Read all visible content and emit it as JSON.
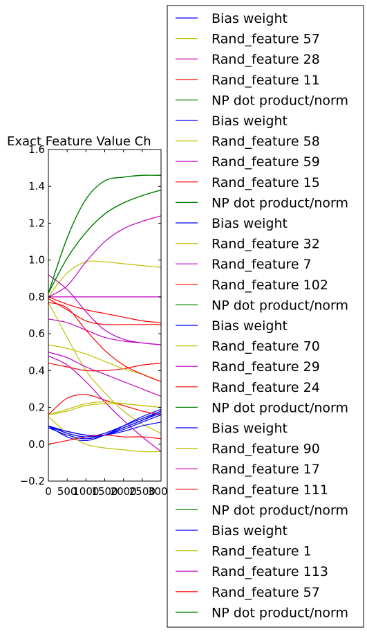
{
  "chart_data": {
    "type": "line",
    "title": "Exact Feature Value Ch",
    "xlabel": "",
    "ylabel": "",
    "xlim": [
      0,
      3000
    ],
    "ylim": [
      -0.2,
      1.6
    ],
    "x_ticks": [
      "0",
      "500",
      "1000",
      "1500",
      "2000",
      "2500",
      "3000"
    ],
    "y_ticks": [
      "−0.2",
      "0.0",
      "0.2",
      "0.4",
      "0.6",
      "0.8",
      "1.0",
      "1.2",
      "1.4",
      "1.6"
    ],
    "grid": false,
    "legend_position": "right, outside plot",
    "x": [
      0,
      500,
      1000,
      1500,
      2000,
      2500,
      3000
    ],
    "series": [
      {
        "name": "Bias weight",
        "color": "#0000ff",
        "values": [
          0.1,
          0.07,
          0.05,
          0.05,
          0.09,
          0.13,
          0.18
        ]
      },
      {
        "name": "Rand_feature 57",
        "color": "#bfbf00",
        "values": [
          0.77,
          0.58,
          0.4,
          0.28,
          0.18,
          0.11,
          0.06
        ]
      },
      {
        "name": "Rand_feature 28",
        "color": "#bf00bf",
        "values": [
          0.5,
          0.47,
          0.42,
          0.38,
          0.34,
          0.3,
          0.26
        ]
      },
      {
        "name": "Rand_feature 11",
        "color": "#ff0000",
        "values": [
          0.8,
          0.76,
          0.73,
          0.71,
          0.69,
          0.67,
          0.66
        ]
      },
      {
        "name": "NP dot product/norm",
        "color": "#008000",
        "values": [
          0.82,
          1.12,
          1.33,
          1.43,
          1.45,
          1.46,
          1.46
        ]
      },
      {
        "name": "Bias weight",
        "color": "#0000ff",
        "values": [
          0.1,
          0.04,
          0.02,
          0.05,
          0.1,
          0.15,
          0.19
        ]
      },
      {
        "name": "Rand_feature 58",
        "color": "#bfbf00",
        "values": [
          0.15,
          0.06,
          0.0,
          -0.02,
          -0.03,
          -0.04,
          -0.04
        ]
      },
      {
        "name": "Rand_feature 59",
        "color": "#bf00bf",
        "values": [
          0.8,
          0.8,
          0.8,
          0.8,
          0.8,
          0.8,
          0.8
        ]
      },
      {
        "name": "Rand_feature 15",
        "color": "#ff0000",
        "values": [
          0.16,
          0.25,
          0.27,
          0.24,
          0.21,
          0.18,
          0.16
        ]
      },
      {
        "name": "NP dot product/norm",
        "color": "#008000",
        "values": [
          0.82,
          1.01,
          1.15,
          1.25,
          1.31,
          1.35,
          1.38
        ]
      },
      {
        "name": "Bias weight",
        "color": "#0000ff",
        "values": [
          0.09,
          0.07,
          0.05,
          0.05,
          0.07,
          0.1,
          0.12
        ]
      },
      {
        "name": "Rand_feature 32",
        "color": "#bfbf00",
        "values": [
          0.8,
          0.93,
          0.99,
          0.99,
          0.98,
          0.97,
          0.96
        ]
      },
      {
        "name": "Rand_feature 7",
        "color": "#bf00bf",
        "values": [
          0.48,
          0.43,
          0.34,
          0.23,
          0.13,
          0.04,
          -0.04
        ]
      },
      {
        "name": "Rand_feature 102",
        "color": "#ff0000",
        "values": [
          0.44,
          0.42,
          0.4,
          0.4,
          0.41,
          0.43,
          0.44
        ]
      },
      {
        "name": "NP dot product/norm",
        "color": "#008000",
        "values": [
          0.82,
          1.12,
          1.33,
          1.43,
          1.45,
          1.46,
          1.46
        ]
      },
      {
        "name": "Bias weight",
        "color": "#0000ff",
        "values": [
          0.1,
          0.06,
          0.04,
          0.06,
          0.1,
          0.14,
          0.18
        ]
      },
      {
        "name": "Rand_feature 70",
        "color": "#bfbf00",
        "values": [
          0.54,
          0.52,
          0.49,
          0.45,
          0.41,
          0.38,
          0.34
        ]
      },
      {
        "name": "Rand_feature 29",
        "color": "#bf00bf",
        "values": [
          0.68,
          0.66,
          0.62,
          0.58,
          0.56,
          0.55,
          0.54
        ]
      },
      {
        "name": "Rand_feature 24",
        "color": "#ff0000",
        "values": [
          0.0,
          0.02,
          0.04,
          0.05,
          0.04,
          0.04,
          0.03
        ]
      },
      {
        "name": "NP dot product/norm",
        "color": "#008000",
        "values": [
          0.82,
          1.01,
          1.15,
          1.25,
          1.31,
          1.35,
          1.38
        ]
      },
      {
        "name": "Bias weight",
        "color": "#0000ff",
        "values": [
          0.09,
          0.05,
          0.03,
          0.05,
          0.09,
          0.13,
          0.17
        ]
      },
      {
        "name": "Rand_feature 90",
        "color": "#bfbf00",
        "values": [
          0.16,
          0.19,
          0.22,
          0.23,
          0.22,
          0.21,
          0.2
        ]
      },
      {
        "name": "Rand_feature 17",
        "color": "#bf00bf",
        "values": [
          0.92,
          0.84,
          0.72,
          0.62,
          0.57,
          0.55,
          0.54
        ]
      },
      {
        "name": "Rand_feature 111",
        "color": "#ff0000",
        "values": [
          0.79,
          0.73,
          0.67,
          0.65,
          0.65,
          0.65,
          0.65
        ]
      },
      {
        "name": "NP dot product/norm",
        "color": "#008000",
        "values": [
          0.82,
          1.12,
          1.33,
          1.43,
          1.45,
          1.46,
          1.46
        ]
      },
      {
        "name": "Bias weight",
        "color": "#0000ff",
        "values": [
          0.1,
          0.06,
          0.04,
          0.05,
          0.08,
          0.12,
          0.16
        ]
      },
      {
        "name": "Rand_feature 1",
        "color": "#bfbf00",
        "values": [
          0.16,
          0.18,
          0.21,
          0.22,
          0.22,
          0.21,
          0.2
        ]
      },
      {
        "name": "Rand_feature 113",
        "color": "#bf00bf",
        "values": [
          0.8,
          0.86,
          0.99,
          1.1,
          1.17,
          1.21,
          1.24
        ]
      },
      {
        "name": "Rand_feature 57",
        "color": "#ff0000",
        "values": [
          0.77,
          0.74,
          0.62,
          0.51,
          0.43,
          0.38,
          0.34
        ]
      },
      {
        "name": "NP dot product/norm",
        "color": "#008000",
        "values": [
          0.82,
          1.01,
          1.15,
          1.25,
          1.31,
          1.35,
          1.38
        ]
      }
    ]
  }
}
